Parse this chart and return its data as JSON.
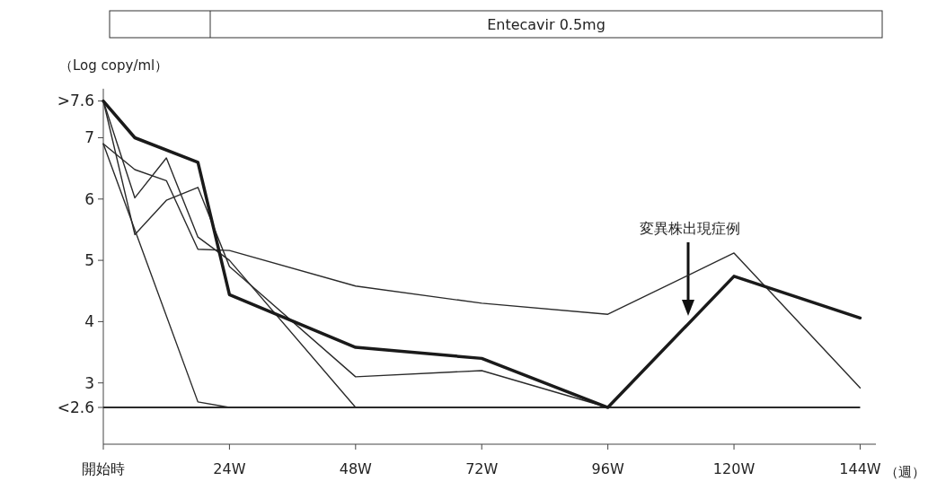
{
  "chart_data": {
    "type": "line",
    "ylabel": "（Log copy/ml）",
    "xlabel": "（週）",
    "xlim": [
      0,
      147
    ],
    "ylim": [
      2,
      7.8
    ],
    "xticks": [
      {
        "value": 0,
        "label": "開始時"
      },
      {
        "value": 24,
        "label": "24W"
      },
      {
        "value": 48,
        "label": "48W"
      },
      {
        "value": 72,
        "label": "72W"
      },
      {
        "value": 96,
        "label": "96W"
      },
      {
        "value": 120,
        "label": "120W"
      },
      {
        "value": 144,
        "label": "144W"
      }
    ],
    "yticks": [
      {
        "value": 2.6,
        "label": "<2.6"
      },
      3,
      4,
      5,
      6,
      7,
      {
        "value": 7.6,
        "label": ">7.6"
      }
    ],
    "grid": false,
    "marker": "none",
    "line_style": "solid",
    "series": [
      {
        "color": "#2a2a2a",
        "x": [
          0,
          6,
          12,
          18,
          24,
          48,
          72,
          96,
          120,
          144
        ],
        "values": [
          6.9,
          6.48,
          6.3,
          5.18,
          5.16,
          4.58,
          4.3,
          4.12,
          5.12,
          2.92
        ]
      },
      {
        "color": "#2a2a2a",
        "x": [
          0,
          6,
          12,
          18,
          24,
          48
        ],
        "values": [
          7.6,
          6.02,
          6.67,
          5.38,
          5.0,
          2.6
        ]
      },
      {
        "color": "#2a2a2a",
        "x": [
          0,
          6,
          12,
          18,
          24,
          48,
          72,
          96
        ],
        "values": [
          7.6,
          5.42,
          5.98,
          6.19,
          4.9,
          3.1,
          3.2,
          2.6
        ]
      },
      {
        "color": "#2a2a2a",
        "x": [
          0,
          18,
          24
        ],
        "values": [
          6.9,
          2.69,
          2.6
        ]
      },
      {
        "color": "#1a1a1a",
        "x": [
          0,
          6,
          18,
          24,
          48,
          72,
          96,
          120,
          144
        ],
        "values": [
          7.6,
          7.0,
          6.6,
          4.44,
          3.58,
          3.4,
          2.6,
          4.74,
          4.06
        ]
      }
    ],
    "ref_lines": [
      {
        "axis": "y",
        "value": 2.6,
        "color": "#2a2a2a"
      }
    ],
    "annotations": [
      "Entecavir 0.5mg",
      "変異株出現症例"
    ]
  }
}
